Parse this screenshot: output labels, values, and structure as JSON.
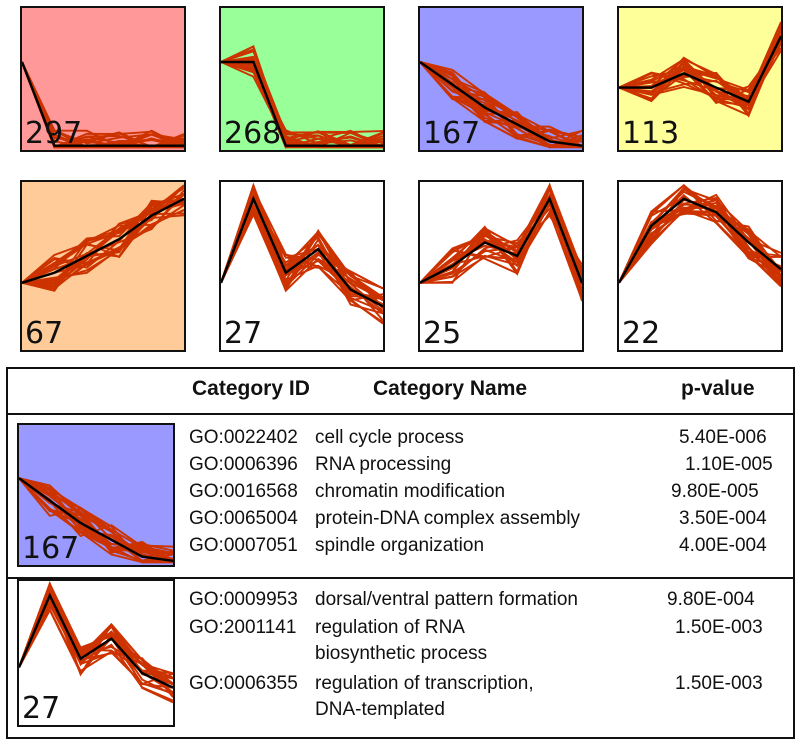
{
  "clusters": [
    {
      "count": "297",
      "bg": "#ff9999",
      "trend": [
        0.38,
        0.97,
        0.97,
        0.97,
        0.97,
        0.97
      ]
    },
    {
      "count": "268",
      "bg": "#99ff99",
      "trend": [
        0.38,
        0.38,
        0.97,
        0.97,
        0.97,
        0.97
      ]
    },
    {
      "count": "167",
      "bg": "#9999ff",
      "trend": [
        0.38,
        0.54,
        0.7,
        0.82,
        0.94,
        0.97
      ]
    },
    {
      "count": "113",
      "bg": "#ffff99",
      "trend": [
        0.56,
        0.56,
        0.46,
        0.56,
        0.66,
        0.2
      ]
    },
    {
      "count": "67",
      "bg": "#ffcc99",
      "trend": [
        0.6,
        0.54,
        0.44,
        0.34,
        0.2,
        0.1
      ]
    },
    {
      "count": "27",
      "bg": "#ffffff",
      "trend": [
        0.6,
        0.1,
        0.54,
        0.4,
        0.64,
        0.74
      ]
    },
    {
      "count": "25",
      "bg": "#ffffff",
      "trend": [
        0.6,
        0.5,
        0.36,
        0.44,
        0.1,
        0.6
      ]
    },
    {
      "count": "22",
      "bg": "#ffffff",
      "trend": [
        0.6,
        0.26,
        0.1,
        0.18,
        0.36,
        0.52
      ]
    }
  ],
  "table": {
    "headers": {
      "id": "Category ID",
      "name": "Category Name",
      "pvalue": "p-value"
    },
    "groups": [
      {
        "cluster": "167",
        "rows": [
          {
            "id": "GO:0022402",
            "name": "cell cycle process",
            "p": "5.40E-006"
          },
          {
            "id": "GO:0006396",
            "name": "RNA processing",
            "p": "1.10E-005"
          },
          {
            "id": "GO:0016568",
            "name": "chromatin modification",
            "p": "9.80E-005"
          },
          {
            "id": "GO:0065004",
            "name": "protein-DNA complex assembly",
            "p": "3.50E-004"
          },
          {
            "id": "GO:0007051",
            "name": "spindle organization",
            "p": "4.00E-004"
          }
        ]
      },
      {
        "cluster": "27",
        "rows": [
          {
            "id": "GO:0009953",
            "name": "dorsal/ventral pattern formation",
            "p": "9.80E-004"
          },
          {
            "id": "GO:2001141",
            "name": "regulation of RNA",
            "name2": "biosynthetic process",
            "p": "1.50E-003"
          },
          {
            "id": "GO:0006355",
            "name": "regulation of transcription,",
            "name2": "DNA-templated",
            "p": "1.50E-003"
          }
        ]
      }
    ]
  },
  "colors": {
    "profile": "#cc3300",
    "model": "#000000",
    "frame": "#111111"
  }
}
